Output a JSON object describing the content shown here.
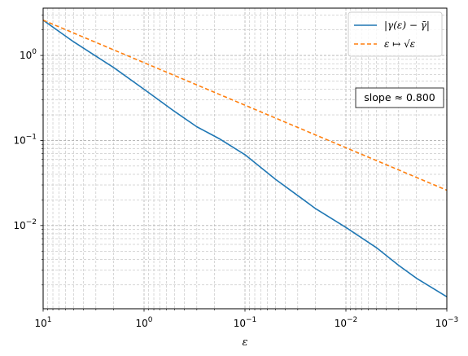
{
  "chart_data": {
    "type": "line",
    "title": "",
    "xlabel": "ε",
    "ylabel": "",
    "xscale": "log",
    "yscale": "log",
    "x_axis_reversed": true,
    "xlim": [
      10,
      0.001
    ],
    "ylim": [
      0.00105,
      3.6
    ],
    "grid": "major and minor, dashed",
    "legend_position": "top-right",
    "x_ticks": [
      {
        "value": 10,
        "base": "10",
        "exp": "1"
      },
      {
        "value": 1,
        "base": "10",
        "exp": "0"
      },
      {
        "value": 0.1,
        "base": "10",
        "exp": "−1"
      },
      {
        "value": 0.01,
        "base": "10",
        "exp": "−2"
      },
      {
        "value": 0.001,
        "base": "10",
        "exp": "−3"
      }
    ],
    "y_ticks": [
      {
        "value": 1,
        "base": "10",
        "exp": "0"
      },
      {
        "value": 0.1,
        "base": "10",
        "exp": "−1"
      },
      {
        "value": 0.01,
        "base": "10",
        "exp": "−2"
      }
    ],
    "series": [
      {
        "name": "|γ(ε) − γ̄|",
        "color": "#1f77b4",
        "style": "solid",
        "x": [
          10,
          5,
          3,
          2,
          1,
          0.5,
          0.3,
          0.18,
          0.1,
          0.05,
          0.03,
          0.02,
          0.01,
          0.005,
          0.003,
          0.002,
          0.001
        ],
        "y": [
          2.6,
          1.45,
          0.98,
          0.72,
          0.4,
          0.22,
          0.145,
          0.105,
          0.068,
          0.035,
          0.0225,
          0.0158,
          0.0095,
          0.0055,
          0.0034,
          0.0024,
          0.00145
        ]
      },
      {
        "name": "ε ↦ √ε",
        "color": "#ff7f0e",
        "style": "dashed",
        "x": [
          10,
          0.001
        ],
        "y": [
          2.6,
          0.026
        ]
      }
    ],
    "annotations": [
      {
        "text": "slope ≈ 0.800",
        "position": "right, upper-middle"
      }
    ]
  }
}
